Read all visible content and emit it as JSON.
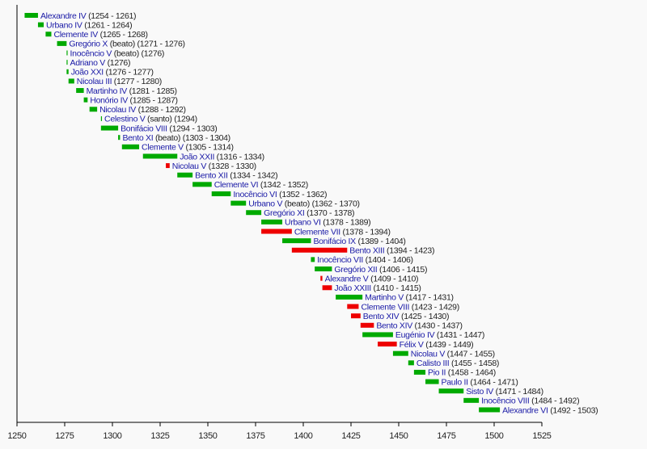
{
  "chart_data": {
    "type": "bar",
    "subtype": "timeline-gantt",
    "title": "",
    "xlabel": "",
    "ylabel": "",
    "xlim": [
      1250,
      1525
    ],
    "xticks": [
      1250,
      1275,
      1300,
      1325,
      1350,
      1375,
      1400,
      1425,
      1450,
      1475,
      1500,
      1525
    ],
    "grid": false,
    "colors": {
      "pope": "#00aa00",
      "antipope": "#ee0000",
      "name_text": "#1a1aa6",
      "axis": "#000000"
    },
    "legend": null,
    "series": [
      {
        "name": "Alexandre IV",
        "note": "",
        "start": 1254,
        "end": 1261,
        "label": "(1254 - 1261)",
        "kind": "pope"
      },
      {
        "name": "Urbano IV",
        "note": "",
        "start": 1261,
        "end": 1264,
        "label": "(1261 - 1264)",
        "kind": "pope"
      },
      {
        "name": "Clemente IV",
        "note": "",
        "start": 1265,
        "end": 1268,
        "label": "(1265 - 1268)",
        "kind": "pope"
      },
      {
        "name": "Gregório X",
        "note": "(beato)",
        "start": 1271,
        "end": 1276,
        "label": "(1271 - 1276)",
        "kind": "pope"
      },
      {
        "name": "Inocêncio V",
        "note": "(beato)",
        "start": 1276,
        "end": 1276,
        "label": "(1276)",
        "kind": "pope"
      },
      {
        "name": "Adriano V",
        "note": "",
        "start": 1276,
        "end": 1276,
        "label": "(1276)",
        "kind": "pope"
      },
      {
        "name": "João XXI",
        "note": "",
        "start": 1276,
        "end": 1277,
        "label": "(1276 - 1277)",
        "kind": "pope"
      },
      {
        "name": "Nicolau III",
        "note": "",
        "start": 1277,
        "end": 1280,
        "label": "(1277 - 1280)",
        "kind": "pope"
      },
      {
        "name": "Martinho IV",
        "note": "",
        "start": 1281,
        "end": 1285,
        "label": "(1281 - 1285)",
        "kind": "pope"
      },
      {
        "name": "Honório IV",
        "note": "",
        "start": 1285,
        "end": 1287,
        "label": "(1285 - 1287)",
        "kind": "pope"
      },
      {
        "name": "Nicolau IV",
        "note": "",
        "start": 1288,
        "end": 1292,
        "label": "(1288 - 1292)",
        "kind": "pope"
      },
      {
        "name": "Celestino V",
        "note": "(santo)",
        "start": 1294,
        "end": 1294,
        "label": "(1294)",
        "kind": "pope"
      },
      {
        "name": "Bonifácio VIII",
        "note": "",
        "start": 1294,
        "end": 1303,
        "label": "(1294 - 1303)",
        "kind": "pope"
      },
      {
        "name": "Bento XI",
        "note": "(beato)",
        "start": 1303,
        "end": 1304,
        "label": "(1303 - 1304)",
        "kind": "pope"
      },
      {
        "name": "Clemente V",
        "note": "",
        "start": 1305,
        "end": 1314,
        "label": "(1305 - 1314)",
        "kind": "pope"
      },
      {
        "name": "João XXII",
        "note": "",
        "start": 1316,
        "end": 1334,
        "label": "(1316 - 1334)",
        "kind": "pope"
      },
      {
        "name": "Nicolau V",
        "note": "",
        "start": 1328,
        "end": 1330,
        "label": "(1328 - 1330)",
        "kind": "antipope"
      },
      {
        "name": "Bento XII",
        "note": "",
        "start": 1334,
        "end": 1342,
        "label": "(1334 - 1342)",
        "kind": "pope"
      },
      {
        "name": "Clemente VI",
        "note": "",
        "start": 1342,
        "end": 1352,
        "label": "(1342 - 1352)",
        "kind": "pope"
      },
      {
        "name": "Inocêncio VI",
        "note": "",
        "start": 1352,
        "end": 1362,
        "label": "(1352 - 1362)",
        "kind": "pope"
      },
      {
        "name": "Urbano V",
        "note": "(beato)",
        "start": 1362,
        "end": 1370,
        "label": "(1362 - 1370)",
        "kind": "pope"
      },
      {
        "name": "Gregório XI",
        "note": "",
        "start": 1370,
        "end": 1378,
        "label": "(1370 - 1378)",
        "kind": "pope"
      },
      {
        "name": "Urbano VI",
        "note": "",
        "start": 1378,
        "end": 1389,
        "label": "(1378 - 1389)",
        "kind": "pope"
      },
      {
        "name": "Clemente VII",
        "note": "",
        "start": 1378,
        "end": 1394,
        "label": "(1378 - 1394)",
        "kind": "antipope"
      },
      {
        "name": "Bonifácio IX",
        "note": "",
        "start": 1389,
        "end": 1404,
        "label": "(1389 - 1404)",
        "kind": "pope"
      },
      {
        "name": "Bento XIII",
        "note": "",
        "start": 1394,
        "end": 1423,
        "label": "(1394 - 1423)",
        "kind": "antipope"
      },
      {
        "name": "Inocêncio VII",
        "note": "",
        "start": 1404,
        "end": 1406,
        "label": "(1404 - 1406)",
        "kind": "pope"
      },
      {
        "name": "Gregório XII",
        "note": "",
        "start": 1406,
        "end": 1415,
        "label": "(1406 - 1415)",
        "kind": "pope"
      },
      {
        "name": "Alexandre V",
        "note": "",
        "start": 1409,
        "end": 1410,
        "label": "(1409 - 1410)",
        "kind": "antipope"
      },
      {
        "name": "João XXIII",
        "note": "",
        "start": 1410,
        "end": 1415,
        "label": "(1410 - 1415)",
        "kind": "antipope"
      },
      {
        "name": "Martinho V",
        "note": "",
        "start": 1417,
        "end": 1431,
        "label": "(1417 - 1431)",
        "kind": "pope"
      },
      {
        "name": "Clemente VIII",
        "note": "",
        "start": 1423,
        "end": 1429,
        "label": "(1423 - 1429)",
        "kind": "antipope"
      },
      {
        "name": "Bento XIV",
        "note": "",
        "start": 1425,
        "end": 1430,
        "label": "(1425 - 1430)",
        "kind": "antipope"
      },
      {
        "name": "Bento XIV",
        "note": "",
        "start": 1430,
        "end": 1437,
        "label": "(1430 - 1437)",
        "kind": "antipope"
      },
      {
        "name": "Eugénio IV",
        "note": "",
        "start": 1431,
        "end": 1447,
        "label": "(1431 - 1447)",
        "kind": "pope"
      },
      {
        "name": "Félix V",
        "note": "",
        "start": 1439,
        "end": 1449,
        "label": "(1439 - 1449)",
        "kind": "antipope"
      },
      {
        "name": "Nicolau V",
        "note": "",
        "start": 1447,
        "end": 1455,
        "label": "(1447 - 1455)",
        "kind": "pope"
      },
      {
        "name": "Calisto III",
        "note": "",
        "start": 1455,
        "end": 1458,
        "label": "(1455 - 1458)",
        "kind": "pope"
      },
      {
        "name": "Pio II",
        "note": "",
        "start": 1458,
        "end": 1464,
        "label": "(1458 - 1464)",
        "kind": "pope"
      },
      {
        "name": "Paulo II",
        "note": "",
        "start": 1464,
        "end": 1471,
        "label": "(1464 - 1471)",
        "kind": "pope"
      },
      {
        "name": "Sisto IV",
        "note": "",
        "start": 1471,
        "end": 1484,
        "label": "(1471 - 1484)",
        "kind": "pope"
      },
      {
        "name": "Inocêncio VIII",
        "note": "",
        "start": 1484,
        "end": 1492,
        "label": "(1484 - 1492)",
        "kind": "pope"
      },
      {
        "name": "Alexandre VI",
        "note": "",
        "start": 1492,
        "end": 1503,
        "label": "(1492 - 1503)",
        "kind": "pope"
      }
    ]
  }
}
